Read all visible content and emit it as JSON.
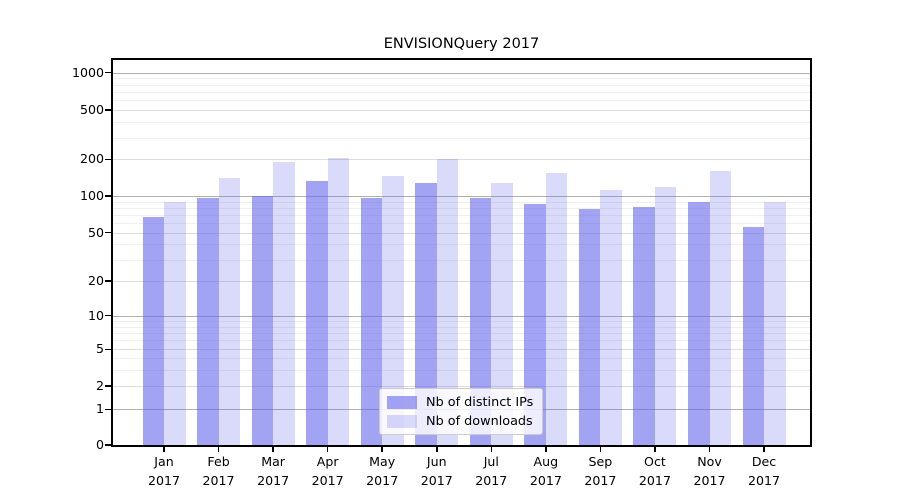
{
  "chart_data": {
    "type": "bar",
    "title": "ENVISIONQuery 2017",
    "categories": [
      "Jan 2017",
      "Feb 2017",
      "Mar 2017",
      "Apr 2017",
      "May 2017",
      "Jun 2017",
      "Jul 2017",
      "Aug 2017",
      "Sep 2017",
      "Oct 2017",
      "Nov 2017",
      "Dec 2017"
    ],
    "x_tick_months": [
      "Jan",
      "Feb",
      "Mar",
      "Apr",
      "May",
      "Jun",
      "Jul",
      "Aug",
      "Sep",
      "Oct",
      "Nov",
      "Dec"
    ],
    "x_tick_year": "2017",
    "series": [
      {
        "name": "Nb of distinct IPs",
        "values": [
          67,
          97,
          100,
          133,
          97,
          128,
          96,
          86,
          78,
          82,
          90,
          56
        ]
      },
      {
        "name": "Nb of downloads",
        "values": [
          90,
          140,
          191,
          207,
          145,
          200,
          127,
          154,
          112,
          119,
          160,
          90
        ]
      }
    ],
    "yticks": [
      0,
      1,
      2,
      5,
      10,
      20,
      50,
      100,
      200,
      500,
      1000
    ],
    "ytick_labels": [
      "0",
      "1",
      "2",
      "5",
      "10",
      "20",
      "50",
      "100",
      "200",
      "500",
      "1000"
    ],
    "yscale": "log-like with 1-2-5 labeled ticks and 0 baseline",
    "ylim": [
      0,
      1150
    ],
    "grid": true,
    "legend_position": "lower center",
    "colors": {
      "bar_base": "#6060ec",
      "alpha_distinct_ips": 0.58,
      "alpha_downloads": 0.235,
      "grid_major": "#b0b0b0",
      "grid_sub": "#dcdcdc",
      "grid_minor": "#efefef",
      "spine": "#000000"
    },
    "minor_grid_values": [
      3,
      4,
      6,
      7,
      8,
      9,
      30,
      40,
      60,
      70,
      80,
      90,
      300,
      400,
      600,
      700,
      800,
      900
    ],
    "sub_grid_values": [
      2,
      5,
      20,
      50,
      200,
      500
    ],
    "major_grid_values": [
      1,
      10,
      100,
      1000
    ]
  }
}
